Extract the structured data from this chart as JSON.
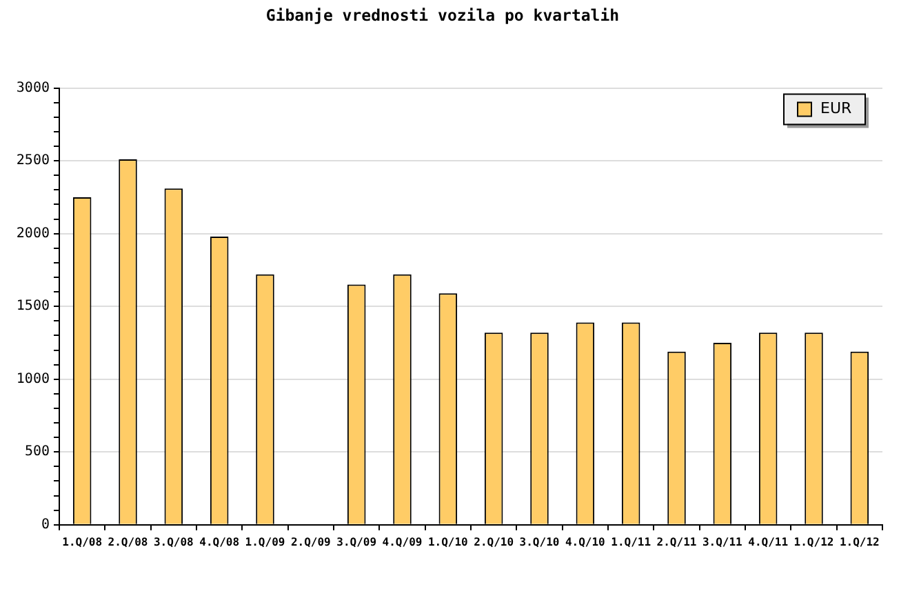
{
  "chart_data": {
    "type": "bar",
    "title": "Gibanje vrednosti vozila po kvartalih",
    "categories": [
      "1.Q/08",
      "2.Q/08",
      "3.Q/08",
      "4.Q/08",
      "1.Q/09",
      "2.Q/09",
      "3.Q/09",
      "4.Q/09",
      "1.Q/10",
      "2.Q/10",
      "3.Q/10",
      "4.Q/10",
      "1.Q/11",
      "2.Q/11",
      "3.Q/11",
      "4.Q/11",
      "1.Q/12",
      "1.Q/12"
    ],
    "series": [
      {
        "name": "EUR",
        "color": "#ffcc66",
        "values": [
          2250,
          2510,
          2310,
          1980,
          1720,
          null,
          1650,
          1720,
          1590,
          1320,
          1320,
          1390,
          1390,
          1190,
          1250,
          1320,
          1320,
          1190
        ]
      }
    ],
    "ylim": [
      0,
      3000
    ],
    "yticks": [
      0,
      {
        "value": 100,
        "label": null
      },
      {
        "value": 200,
        "label": null
      },
      {
        "value": 300,
        "label": null
      },
      {
        "value": 400,
        "label": null
      },
      500,
      {
        "value": 600,
        "label": null
      },
      {
        "value": 700,
        "label": null
      },
      {
        "value": 800,
        "label": null
      },
      {
        "value": 900,
        "label": null
      },
      1000,
      {
        "value": 1100,
        "label": null
      },
      {
        "value": 1200,
        "label": null
      },
      {
        "value": 1300,
        "label": null
      },
      {
        "value": 1400,
        "label": null
      },
      1500,
      {
        "value": 1600,
        "label": null
      },
      {
        "value": 1700,
        "label": null
      },
      {
        "value": 1800,
        "label": null
      },
      {
        "value": 1900,
        "label": null
      },
      2000,
      {
        "value": 2100,
        "label": null
      },
      {
        "value": 2200,
        "label": null
      },
      {
        "value": 2300,
        "label": null
      },
      {
        "value": 2400,
        "label": null
      },
      2500,
      {
        "value": 2600,
        "label": null
      },
      {
        "value": 2700,
        "label": null
      },
      {
        "value": 2800,
        "label": null
      },
      {
        "value": 2900,
        "label": null
      },
      3000
    ],
    "grid": "y",
    "legend": "top right"
  }
}
